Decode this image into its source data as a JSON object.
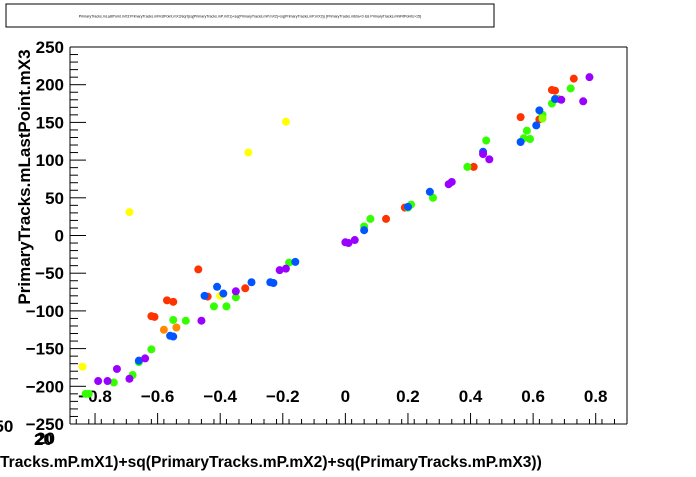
{
  "chart_data": {
    "type": "scatter",
    "title": "PrimaryTracks.mLastPoint.mX3:PrimaryTracks.mFirstPoint.mX3/sqrt(sq(PrimaryTracks.mP.mX1)+sq(PrimaryTracks.mP.mX2)+sq(PrimaryTracks.mP.mX3)) {PrimaryTracks.mEta<0 && PrimaryTracks.mNFitPoints>15}",
    "xlabel": "Tracks.mP.mX1)+sq(PrimaryTracks.mP.mX2)+sq(PrimaryTracks.mP.mX3))",
    "ylabel": "PrimaryTracks.mLastPoint.mX3",
    "xlim": [
      -0.88,
      0.9
    ],
    "ylim": [
      -250,
      250
    ],
    "x_ticks": [
      -0.8,
      -0.6,
      -0.4,
      -0.2,
      0,
      0.2,
      0.4,
      0.6,
      0.8
    ],
    "x_tick_labels": [
      "−0.8",
      "−0.6",
      "−0.4",
      "−0.2",
      "0",
      "0.2",
      "0.4",
      "0.6",
      "0.8"
    ],
    "y_ticks": [
      -250,
      -200,
      -150,
      -100,
      -50,
      0,
      50,
      100,
      150,
      200,
      250
    ],
    "y_tick_labels": [
      "−250",
      "−200",
      "−150",
      "−100",
      "−50",
      "0",
      "50",
      "100",
      "150",
      "200",
      "250"
    ],
    "stray_labels": {
      "left_top": "y$250",
      "left_bottom": "20",
      "lower_20": "20"
    },
    "grid": false,
    "legend": "none",
    "colors": {
      "yellow": "#ffff00",
      "red": "#ff3300",
      "green": "#33ff00",
      "blue": "#0055ff",
      "purple": "#9900ff",
      "orange": "#ff8800",
      "lime": "#88ff00"
    },
    "series": [
      {
        "color": "#ffff00",
        "x": [
          -0.84,
          -0.69,
          -0.31,
          -0.19,
          -0.4
        ],
        "y": [
          -174,
          31,
          110,
          151,
          -80
        ]
      },
      {
        "color": "#ff3300",
        "x": [
          -0.57,
          -0.55,
          -0.62,
          -0.61,
          -0.47,
          -0.44,
          -0.32,
          0.13,
          0.19,
          0.41,
          0.56,
          0.62,
          0.66,
          0.67,
          0.73
        ],
        "y": [
          -86,
          -88,
          -107,
          -108,
          -45,
          -81,
          -70,
          22,
          37,
          91,
          157,
          154,
          193,
          192,
          208
        ]
      },
      {
        "color": "#33ff00",
        "x": [
          -0.83,
          -0.82,
          -0.74,
          -0.68,
          -0.66,
          -0.62,
          -0.55,
          -0.51,
          -0.42,
          -0.38,
          -0.35,
          -0.18,
          0.06,
          0.08,
          0.2,
          0.21,
          0.28,
          0.39,
          0.45,
          0.57,
          0.58,
          0.59,
          0.63,
          0.66,
          0.68,
          0.72
        ],
        "y": [
          -210,
          -210,
          -195,
          -185,
          -168,
          -151,
          -112,
          -113,
          -94,
          -94,
          -82,
          -36,
          12,
          22,
          37,
          41,
          50,
          91,
          126,
          129,
          139,
          128,
          160,
          175,
          181,
          195
        ]
      },
      {
        "color": "#0055ff",
        "x": [
          -0.66,
          -0.56,
          -0.55,
          -0.45,
          -0.41,
          -0.39,
          -0.3,
          -0.24,
          -0.23,
          -0.16,
          0.06,
          0.2,
          0.27,
          0.44,
          0.56,
          0.61,
          0.62,
          0.67
        ],
        "y": [
          -166,
          -133,
          -134,
          -80,
          -68,
          -77,
          -62,
          -62,
          -63,
          -35,
          7,
          38,
          58,
          111,
          124,
          146,
          166,
          181
        ]
      },
      {
        "color": "#9900ff",
        "x": [
          -0.79,
          -0.76,
          -0.73,
          -0.69,
          -0.64,
          -0.46,
          -0.35,
          -0.21,
          -0.19,
          0.0,
          0.01,
          0.03,
          0.33,
          0.34,
          0.44,
          0.46,
          0.69,
          0.76,
          0.78
        ],
        "y": [
          -193,
          -193,
          -177,
          -190,
          -163,
          -113,
          -74,
          -46,
          -44,
          -9,
          -10,
          -6,
          68,
          71,
          108,
          101,
          180,
          178,
          210
        ]
      },
      {
        "color": "#ff8800",
        "x": [
          -0.58,
          -0.54
        ],
        "y": [
          -125,
          -122
        ]
      },
      {
        "color": "#88ff00",
        "x": [
          0.63
        ],
        "y": [
          155
        ]
      }
    ]
  }
}
